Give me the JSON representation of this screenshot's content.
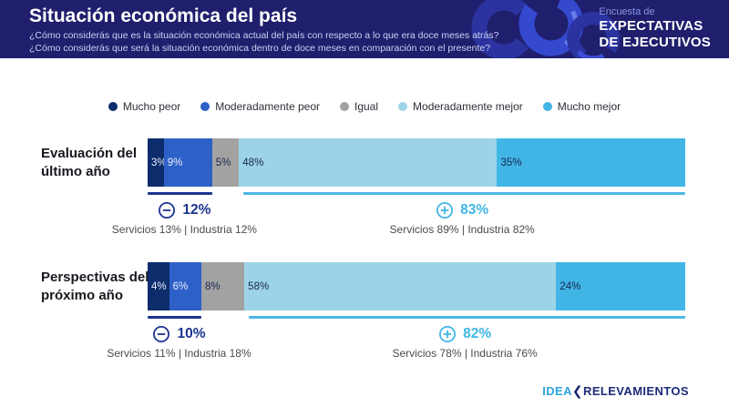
{
  "header": {
    "title": "Situación económica del país",
    "subtitle_line1": "¿Cómo considerás que es la situación económica actual del país con respecto a lo que era doce meses atrás?",
    "subtitle_line2": "¿Cómo considerás que será la situación económica dentro de doce meses en comparación con el presente?",
    "tagline_small": "Encuesta de",
    "tagline_line1": "EXPECTATIVAS",
    "tagline_line2": "DE EJECUTIVOS"
  },
  "chart_data": {
    "type": "bar",
    "stacked": true,
    "orientation": "horizontal",
    "xlim": [
      0,
      100
    ],
    "legend_position": "top",
    "title": "Situación económica del país",
    "categories": [
      "Evaluación del último año",
      "Perspectivas del próximo año"
    ],
    "category_lines": [
      [
        "Evaluación del",
        "último año"
      ],
      [
        "Perspectivas del",
        "próximo año"
      ]
    ],
    "series": [
      {
        "name": "Mucho peor",
        "color": "#0c2c6b",
        "label_color": "#e9eefb",
        "values": [
          3,
          4
        ]
      },
      {
        "name": "Moderadamente peor",
        "color": "#2e61c8",
        "label_color": "#e9eefb",
        "values": [
          9,
          6
        ]
      },
      {
        "name": "Igual",
        "color": "#a3a2a2",
        "label_color": "#16254f",
        "values": [
          5,
          8
        ]
      },
      {
        "name": "Moderadamente mejor",
        "color": "#9dd3e8",
        "label_color": "#16254f",
        "values": [
          48,
          58
        ]
      },
      {
        "name": "Mucho mejor",
        "color": "#41b6e6",
        "label_color": "#16254f",
        "values": [
          35,
          24
        ]
      }
    ],
    "value_suffix": "%",
    "negative_accent": "#1c3490",
    "positive_accent": "#41b6e6",
    "negative_line_color": "#1c3490",
    "positive_line_color": "#4db7e6",
    "annotations": [
      {
        "negative_total": "12%",
        "negative_detail": "Servicios 13% | Industria 12%",
        "positive_total": "83%",
        "positive_detail": "Servicios 89% | Industria 82%"
      },
      {
        "negative_total": "10%",
        "negative_detail": "Servicios 11% | Industria 18%",
        "positive_total": "82%",
        "positive_detail": "Servicios 78% | Industria 76%"
      }
    ]
  },
  "footer": {
    "brand_primary": "idea",
    "brand_separator": "❮",
    "brand_secondary": "relevamientos"
  }
}
